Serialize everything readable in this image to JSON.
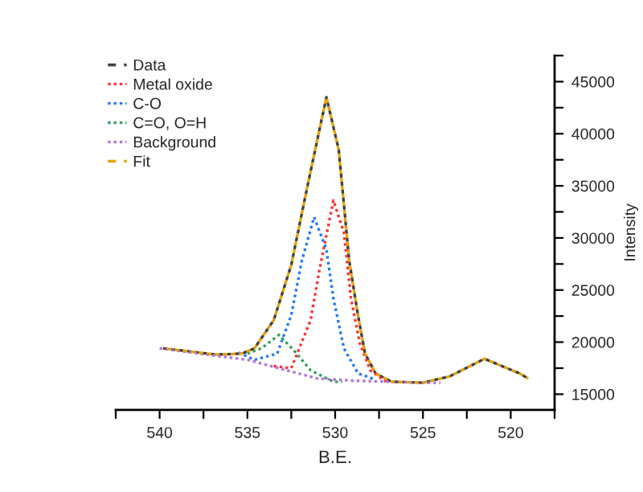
{
  "chart_data": {
    "type": "line",
    "xlabel": "B.E.",
    "ylabel": "Intensity",
    "xlim": [
      542.5,
      517.5
    ],
    "xticks": [
      {
        "value": 542.5,
        "label": null
      },
      540,
      {
        "value": 537.5,
        "label": null
      },
      535,
      {
        "value": 532.5,
        "label": null
      },
      530,
      {
        "value": 527.5,
        "label": null
      },
      525,
      {
        "value": 522.5,
        "label": null
      },
      520,
      {
        "value": 517.5,
        "label": null
      }
    ],
    "ylim": [
      13500,
      47500
    ],
    "yticks": [
      15000,
      {
        "value": 17500,
        "label": null
      },
      20000,
      {
        "value": 22500,
        "label": null
      },
      25000,
      {
        "value": 27500,
        "label": null
      },
      30000,
      {
        "value": 32500,
        "label": null
      },
      35000,
      {
        "value": 37500,
        "label": null
      },
      40000,
      {
        "value": 42500,
        "label": null
      },
      45000,
      {
        "value": 47500,
        "label": null
      }
    ],
    "legend": "top left",
    "grid": false,
    "line_style": "dotted",
    "marker": "none",
    "series": [
      {
        "name": "Data",
        "color": "#404040",
        "line_style": "dashed",
        "x": [
          539.8,
          536.8,
          535.3,
          534.6,
          533.5,
          532.5,
          531.6,
          530.5,
          529.8,
          529.5,
          529.2,
          528.7,
          528.3,
          527.7,
          526.8,
          525,
          523.5,
          521.5,
          519.5,
          519
        ],
        "values": [
          19400,
          18800,
          18900,
          19400,
          22100,
          27400,
          34800,
          43500,
          38500,
          33200,
          27800,
          22600,
          18900,
          17000,
          16200,
          16100,
          16700,
          18400,
          17000,
          16500
        ]
      },
      {
        "name": "Metal oxide",
        "color": "#ff3030",
        "x": [
          533.5,
          532.5,
          531.4,
          530.9,
          530.1,
          529.5,
          529.1,
          528.6,
          528,
          527.1
        ],
        "values": [
          17700,
          17500,
          22100,
          26900,
          33600,
          30500,
          24200,
          19900,
          17300,
          16200
        ]
      },
      {
        "name": "C-O",
        "color": "#1e78ff",
        "x": [
          535.5,
          534.6,
          533.3,
          532.5,
          531.9,
          531.2,
          530.5,
          530.1,
          529.5,
          528.7,
          527.7
        ],
        "values": [
          19000,
          18300,
          18900,
          22600,
          27800,
          32000,
          28900,
          24200,
          19400,
          17000,
          16400
        ]
      },
      {
        "name": "C=O, O=H",
        "color": "#2ca05a",
        "x": [
          535,
          534.2,
          533.2,
          532.3,
          531.4,
          530.1,
          529.6
        ],
        "values": [
          18900,
          19400,
          20700,
          19100,
          17300,
          16200,
          16200
        ]
      },
      {
        "name": "Background",
        "color": "#b070e0",
        "x": [
          540,
          535,
          533,
          531,
          529,
          525,
          524
        ],
        "values": [
          19400,
          18300,
          17400,
          16500,
          16300,
          16100,
          16100
        ]
      },
      {
        "name": "Fit",
        "color": "#e8a000",
        "line_style": "dashed",
        "x": [
          539.8,
          536.8,
          535.3,
          534.6,
          533.5,
          532.5,
          531.6,
          530.5,
          529.8,
          529.5,
          529.2,
          528.7,
          528.3,
          527.7,
          526.8,
          525,
          523.5,
          521.5,
          519.5,
          519
        ],
        "values": [
          19400,
          18800,
          18900,
          19400,
          22100,
          27400,
          34800,
          43500,
          38500,
          33200,
          27800,
          22600,
          18900,
          17000,
          16200,
          16100,
          16700,
          18400,
          17000,
          16500
        ]
      }
    ]
  }
}
